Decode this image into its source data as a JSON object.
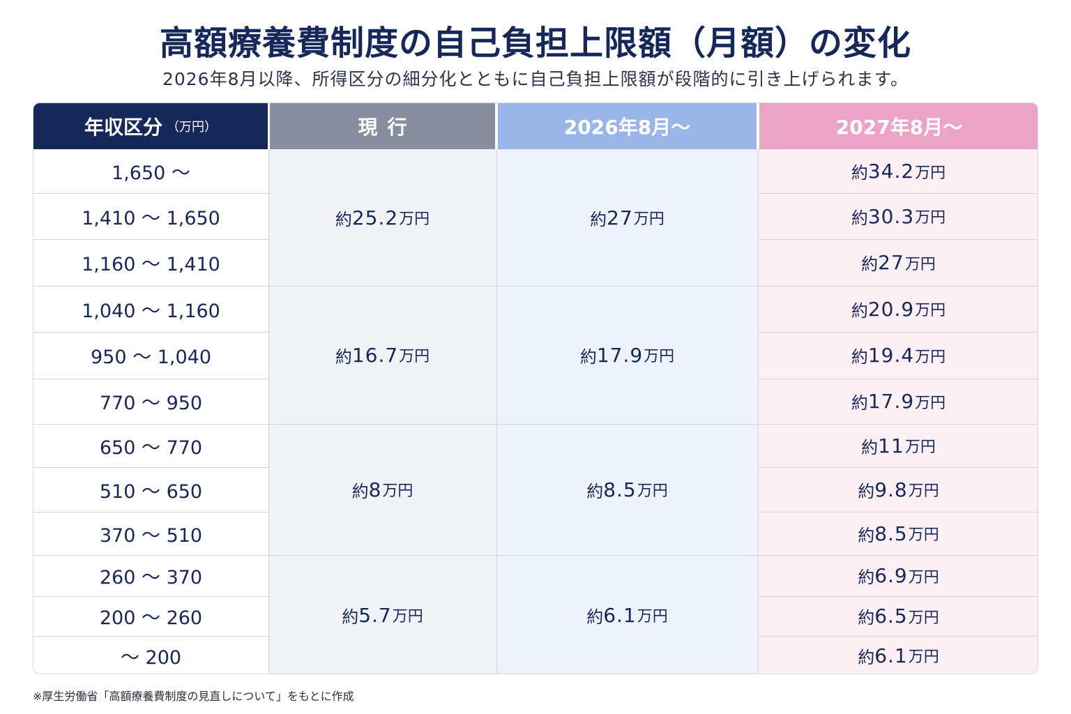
{
  "title": "高額療養費制度の自己負担上限額（月額）の変化",
  "subtitle": "2026年8月以降、所得区分の細分化とともに自己負担上限額が段階的に引き上げられます。",
  "colors": {
    "navy": "#16275a",
    "current_header": "#888e9e",
    "header_2026": "#9ab5e8",
    "header_2027": "#eca4c6"
  },
  "headers": {
    "income": "年収区分",
    "income_unit": "（万円）",
    "current": "現行",
    "from_2026": "2026年8月～",
    "from_2027": "2027年8月～"
  },
  "income_brackets": [
    "1,650 ～",
    "1,410 ～ 1,650",
    "1,160 ～ 1,410",
    "1,040 ～ 1,160",
    "950 ～ 1,040",
    "770 ～ 950",
    "650 ～ 770",
    "510 ～ 650",
    "370 ～ 510",
    "260 ～ 370",
    "200 ～ 260",
    "～ 200"
  ],
  "groups": [
    {
      "current": {
        "prefix": "約",
        "value": "25.2",
        "unit": "万円"
      },
      "from_2026": {
        "prefix": "約",
        "value": "27",
        "unit": "万円"
      }
    },
    {
      "current": {
        "prefix": "約",
        "value": "16.7",
        "unit": "万円"
      },
      "from_2026": {
        "prefix": "約",
        "value": "17.9",
        "unit": "万円"
      }
    },
    {
      "current": {
        "prefix": "約",
        "value": "8",
        "unit": "万円"
      },
      "from_2026": {
        "prefix": "約",
        "value": "8.5",
        "unit": "万円"
      }
    },
    {
      "current": {
        "prefix": "約",
        "value": "5.7",
        "unit": "万円"
      },
      "from_2026": {
        "prefix": "約",
        "value": "6.1",
        "unit": "万円"
      }
    }
  ],
  "from_2027": [
    {
      "prefix": "約",
      "value": "34.2",
      "unit": "万円"
    },
    {
      "prefix": "約",
      "value": "30.3",
      "unit": "万円"
    },
    {
      "prefix": "約",
      "value": "27",
      "unit": "万円"
    },
    {
      "prefix": "約",
      "value": "20.9",
      "unit": "万円"
    },
    {
      "prefix": "約",
      "value": "19.4",
      "unit": "万円"
    },
    {
      "prefix": "約",
      "value": "17.9",
      "unit": "万円"
    },
    {
      "prefix": "約",
      "value": "11",
      "unit": "万円"
    },
    {
      "prefix": "約",
      "value": "9.8",
      "unit": "万円"
    },
    {
      "prefix": "約",
      "value": "8.5",
      "unit": "万円"
    },
    {
      "prefix": "約",
      "value": "6.9",
      "unit": "万円"
    },
    {
      "prefix": "約",
      "value": "6.5",
      "unit": "万円"
    },
    {
      "prefix": "約",
      "value": "6.1",
      "unit": "万円"
    }
  ],
  "footnote": "※厚生労働省「高額療養費制度の見直しについて」をもとに作成"
}
